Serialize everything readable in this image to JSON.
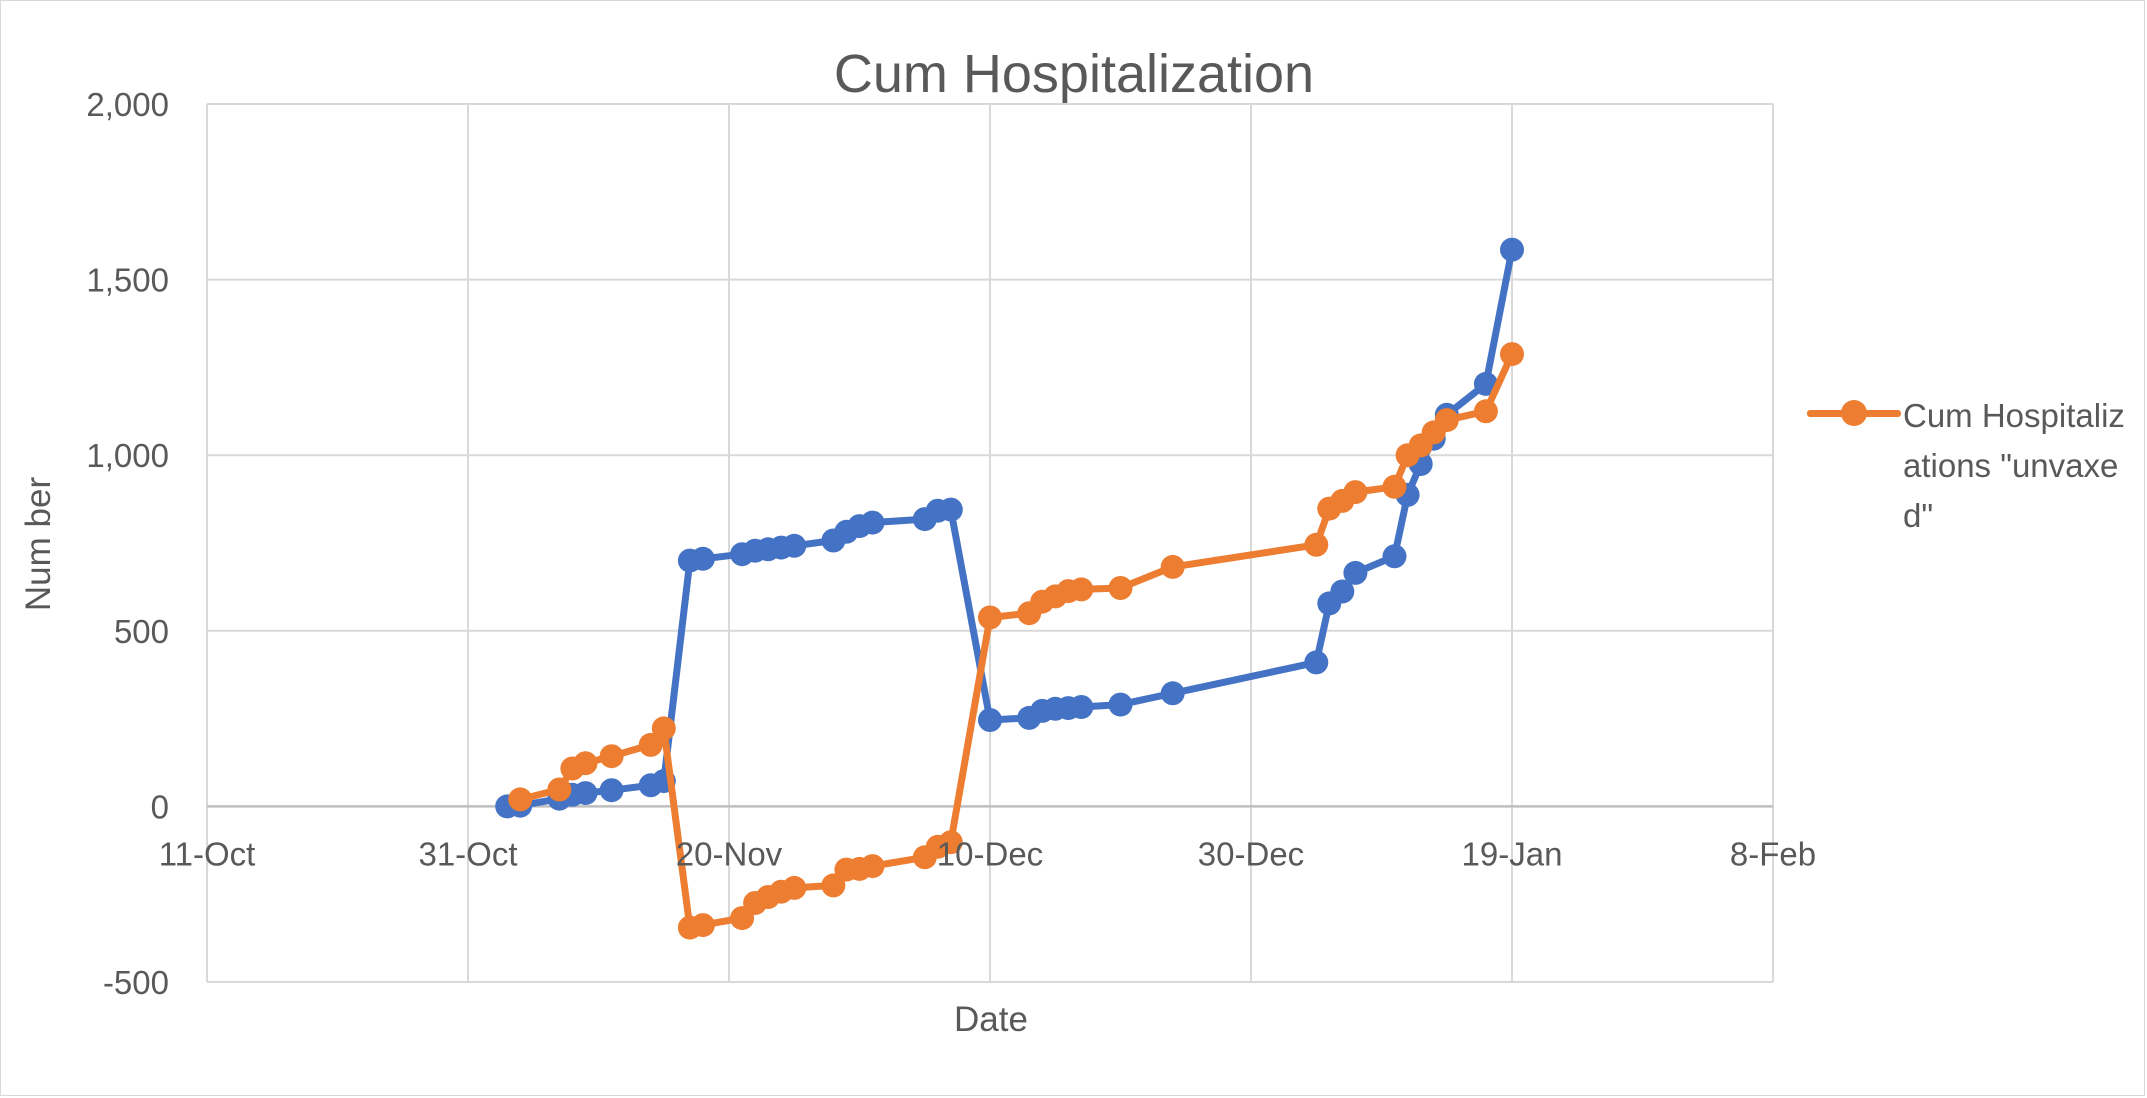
{
  "chart_data": {
    "type": "line",
    "title": "Cum Hospitalization",
    "xlabel": "Date",
    "ylabel": "Num ber",
    "x_ticks": [
      "11-Oct",
      "31-Oct",
      "20-Nov",
      "10-Dec",
      "30-Dec",
      "19-Jan",
      "8-Feb"
    ],
    "y_ticks": [
      "-500",
      "0",
      "500",
      "1,000",
      "1,500",
      "2,000"
    ],
    "xlim": [
      "2021-10-11",
      "2022-02-08"
    ],
    "ylim": [
      -500,
      2000
    ],
    "grid": true,
    "legend_position": "right",
    "series": [
      {
        "name": "",
        "color": "#4472C4",
        "points": [
          [
            "2021-11-03",
            0
          ],
          [
            "2021-11-04",
            2
          ],
          [
            "2021-11-07",
            22
          ],
          [
            "2021-11-08",
            33
          ],
          [
            "2021-11-09",
            38
          ],
          [
            "2021-11-11",
            46
          ],
          [
            "2021-11-14",
            60
          ],
          [
            "2021-11-15",
            72
          ],
          [
            "2021-11-17",
            700
          ],
          [
            "2021-11-18",
            705
          ],
          [
            "2021-11-21",
            718
          ],
          [
            "2021-11-22",
            728
          ],
          [
            "2021-11-23",
            732
          ],
          [
            "2021-11-24",
            737
          ],
          [
            "2021-11-25",
            742
          ],
          [
            "2021-11-28",
            757
          ],
          [
            "2021-11-29",
            782
          ],
          [
            "2021-11-30",
            798
          ],
          [
            "2021-12-01",
            808
          ],
          [
            "2021-12-05",
            818
          ],
          [
            "2021-12-06",
            842
          ],
          [
            "2021-12-07",
            845
          ],
          [
            "2021-12-10",
            246
          ],
          [
            "2021-12-13",
            252
          ],
          [
            "2021-12-14",
            272
          ],
          [
            "2021-12-15",
            278
          ],
          [
            "2021-12-16",
            280
          ],
          [
            "2021-12-17",
            283
          ],
          [
            "2021-12-20",
            290
          ],
          [
            "2021-12-24",
            322
          ],
          [
            "2022-01-04",
            410
          ],
          [
            "2022-01-05",
            578
          ],
          [
            "2022-01-06",
            612
          ],
          [
            "2022-01-07",
            665
          ],
          [
            "2022-01-10",
            712
          ],
          [
            "2022-01-11",
            887
          ],
          [
            "2022-01-12",
            975
          ],
          [
            "2022-01-13",
            1047
          ],
          [
            "2022-01-14",
            1115
          ],
          [
            "2022-01-17",
            1203
          ],
          [
            "2022-01-19",
            1585
          ]
        ]
      },
      {
        "name": "Cum Hospitalizations \"unvaxed\"",
        "color": "#ED7D31",
        "points": [
          [
            "2021-11-04",
            20
          ],
          [
            "2021-11-07",
            48
          ],
          [
            "2021-11-08",
            108
          ],
          [
            "2021-11-09",
            123
          ],
          [
            "2021-11-11",
            143
          ],
          [
            "2021-11-14",
            175
          ],
          [
            "2021-11-15",
            222
          ],
          [
            "2021-11-17",
            -345
          ],
          [
            "2021-11-18",
            -338
          ],
          [
            "2021-11-21",
            -318
          ],
          [
            "2021-11-22",
            -275
          ],
          [
            "2021-11-23",
            -258
          ],
          [
            "2021-11-24",
            -243
          ],
          [
            "2021-11-25",
            -232
          ],
          [
            "2021-11-28",
            -225
          ],
          [
            "2021-11-29",
            -180
          ],
          [
            "2021-11-30",
            -178
          ],
          [
            "2021-12-01",
            -170
          ],
          [
            "2021-12-05",
            -145
          ],
          [
            "2021-12-06",
            -115
          ],
          [
            "2021-12-07",
            -102
          ],
          [
            "2021-12-10",
            538
          ],
          [
            "2021-12-13",
            550
          ],
          [
            "2021-12-14",
            583
          ],
          [
            "2021-12-15",
            598
          ],
          [
            "2021-12-16",
            613
          ],
          [
            "2021-12-17",
            618
          ],
          [
            "2021-12-20",
            622
          ],
          [
            "2021-12-24",
            682
          ],
          [
            "2022-01-04",
            745
          ],
          [
            "2022-01-05",
            848
          ],
          [
            "2022-01-06",
            870
          ],
          [
            "2022-01-07",
            895
          ],
          [
            "2022-01-10",
            910
          ],
          [
            "2022-01-11",
            1000
          ],
          [
            "2022-01-12",
            1028
          ],
          [
            "2022-01-13",
            1065
          ],
          [
            "2022-01-14",
            1100
          ],
          [
            "2022-01-17",
            1125
          ],
          [
            "2022-01-19",
            1288
          ]
        ]
      }
    ]
  }
}
